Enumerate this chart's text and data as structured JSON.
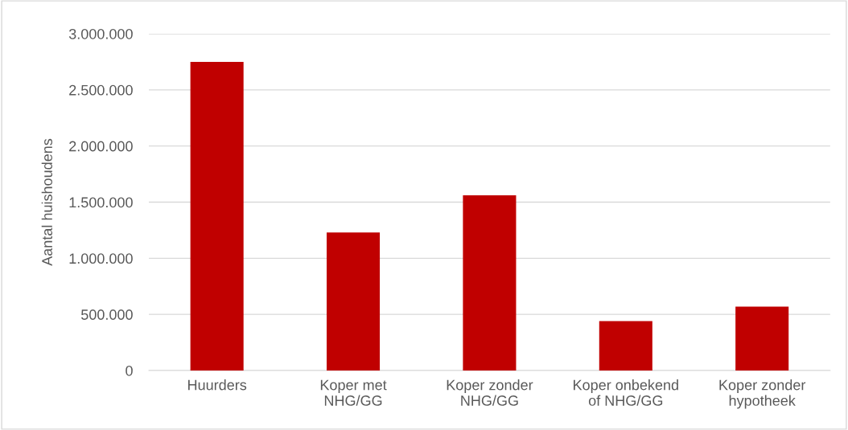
{
  "chart_data": {
    "type": "bar",
    "ylabel": "Aantal huishoudens",
    "categories": [
      "Huurders",
      "Koper met\nNHG/GG",
      "Koper zonder\nNHG/GG",
      "Koper onbekend\nof NHG/GG",
      "Koper zonder\nhypotheek"
    ],
    "values": [
      2750000,
      1230000,
      1560000,
      440000,
      570000
    ],
    "color": "#c00000",
    "ylim": [
      0,
      3000000
    ],
    "yticks": [
      0,
      {
        "value": 500000,
        "label": "500.000"
      },
      {
        "value": 1000000,
        "label": "1.000.000"
      },
      {
        "value": 1500000,
        "label": "1.500.000"
      },
      {
        "value": 2000000,
        "label": "2.000.000"
      },
      {
        "value": 2500000,
        "label": "2.500.000"
      },
      {
        "value": 3000000,
        "label": "3.000.000"
      }
    ],
    "grid": "y",
    "legend": false
  }
}
